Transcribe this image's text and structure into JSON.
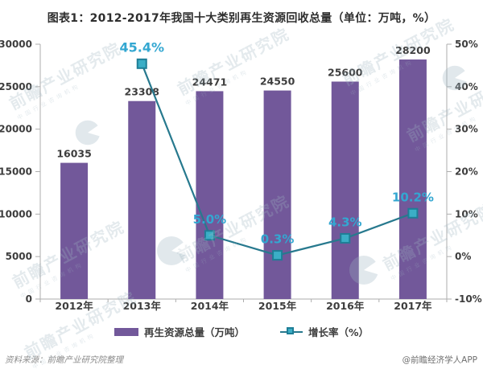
{
  "title": "图表1：2012-2017年我国十大类别再生资源回收总量（单位：万吨，%）",
  "footer": {
    "source_note": "资料来源：前瞻产业研究院整理",
    "credit": "@前瞻经济学人APP"
  },
  "watermark": {
    "text": "前瞻产业研究院",
    "subtext": "中国行业咨询机构"
  },
  "colors": {
    "bar": "#72589A",
    "line": "#27798E",
    "marker_fill": "#3BAEC6",
    "marker_stroke": "#1E7E96",
    "growth_label": "#33A7D1",
    "value_label": "#3D3D3D",
    "axis_text": "#3D3D3D",
    "axis_line": "#ADADAD",
    "title_text": "#2E2E2E"
  },
  "chart_data": {
    "type": "bar+line combo",
    "title": "图表1：2012-2017年我国十大类别再生资源回收总量（单位：万吨，%）",
    "categories": [
      "2012年",
      "2013年",
      "2014年",
      "2015年",
      "2016年",
      "2017年"
    ],
    "series": [
      {
        "name": "再生资源总量（万吨）",
        "type": "bar",
        "axis": "left",
        "values": [
          16035,
          23308,
          24471,
          24550,
          25600,
          28200
        ],
        "labels": [
          "16035",
          "23308",
          "24471",
          "24550",
          "25600",
          "28200"
        ]
      },
      {
        "name": "增长率（%）",
        "type": "line",
        "axis": "right",
        "values": [
          null,
          45.4,
          5.0,
          0.3,
          4.3,
          10.2
        ],
        "labels": [
          null,
          "45.4%",
          "5.0%",
          "0.3%",
          "4.3%",
          "10.2%"
        ]
      }
    ],
    "left_axis": {
      "min": 0,
      "max": 30000,
      "step": 5000,
      "ticks": [
        "0",
        "5000",
        "10000",
        "15000",
        "20000",
        "25000",
        "30000"
      ]
    },
    "right_axis": {
      "min": -10,
      "max": 50,
      "step": 10,
      "ticks": [
        "-10%",
        "0%",
        "10%",
        "20%",
        "30%",
        "40%",
        "50%"
      ]
    },
    "grid": false,
    "legend_position": "bottom"
  }
}
